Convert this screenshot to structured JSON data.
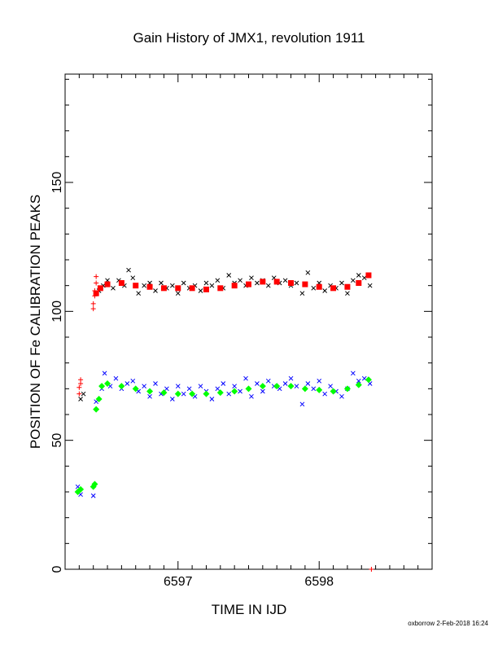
{
  "chart_data": {
    "type": "scatter",
    "title": "Gain History of JMX1, revolution 1911",
    "xlabel": "TIME IN IJD",
    "ylabel": "POSITION OF Fe CALIBRATION PEAKS",
    "xlim": [
      6596.2,
      6598.8
    ],
    "ylim": [
      0,
      192
    ],
    "x_ticks": [
      6597,
      6598
    ],
    "y_ticks": [
      0,
      50,
      100,
      150
    ],
    "grid": false,
    "footer": "oxborrow  2-Feb-2018 16:24",
    "series": [
      {
        "marker": "plus",
        "color": "#ff0000",
        "points": [
          [
            6596.3,
            68
          ],
          [
            6596.3,
            70.5
          ],
          [
            6596.31,
            72
          ],
          [
            6596.31,
            73.5
          ],
          [
            6596.4,
            101
          ],
          [
            6596.4,
            103
          ],
          [
            6596.41,
            106
          ],
          [
            6596.41,
            108
          ],
          [
            6596.42,
            111
          ],
          [
            6596.42,
            113.5
          ],
          [
            6598.37,
            0
          ]
        ]
      },
      {
        "marker": "cross",
        "color": "#000000",
        "points": [
          [
            6596.31,
            66
          ],
          [
            6596.33,
            68
          ],
          [
            6596.44,
            108
          ],
          [
            6596.47,
            110
          ],
          [
            6596.5,
            112
          ],
          [
            6596.54,
            109
          ],
          [
            6596.58,
            112
          ],
          [
            6596.62,
            110
          ],
          [
            6596.65,
            116
          ],
          [
            6596.68,
            113
          ],
          [
            6596.72,
            107
          ],
          [
            6596.76,
            110
          ],
          [
            6596.8,
            111
          ],
          [
            6596.84,
            108
          ],
          [
            6596.88,
            111
          ],
          [
            6596.92,
            109
          ],
          [
            6596.96,
            110
          ],
          [
            6597.0,
            107
          ],
          [
            6597.04,
            111
          ],
          [
            6597.08,
            109
          ],
          [
            6597.12,
            110
          ],
          [
            6597.16,
            108
          ],
          [
            6597.2,
            111
          ],
          [
            6597.24,
            110
          ],
          [
            6597.28,
            112
          ],
          [
            6597.32,
            109
          ],
          [
            6597.36,
            114
          ],
          [
            6597.4,
            111
          ],
          [
            6597.44,
            112
          ],
          [
            6597.48,
            110
          ],
          [
            6597.52,
            113
          ],
          [
            6597.56,
            111
          ],
          [
            6597.6,
            112
          ],
          [
            6597.64,
            110
          ],
          [
            6597.68,
            113
          ],
          [
            6597.72,
            111
          ],
          [
            6597.76,
            112
          ],
          [
            6597.8,
            110
          ],
          [
            6597.84,
            111
          ],
          [
            6597.88,
            107
          ],
          [
            6597.92,
            115
          ],
          [
            6597.96,
            109
          ],
          [
            6598.0,
            111
          ],
          [
            6598.04,
            108
          ],
          [
            6598.08,
            110
          ],
          [
            6598.12,
            109
          ],
          [
            6598.16,
            111
          ],
          [
            6598.2,
            107
          ],
          [
            6598.24,
            112
          ],
          [
            6598.28,
            114
          ],
          [
            6598.32,
            113
          ],
          [
            6598.36,
            110
          ]
        ]
      },
      {
        "marker": "square",
        "color": "#ff0000",
        "points": [
          [
            6596.42,
            107
          ],
          [
            6596.45,
            109
          ],
          [
            6596.5,
            110.5
          ],
          [
            6596.6,
            111
          ],
          [
            6596.7,
            110
          ],
          [
            6596.8,
            109.5
          ],
          [
            6596.9,
            109
          ],
          [
            6597.0,
            109
          ],
          [
            6597.1,
            109
          ],
          [
            6597.2,
            108.5
          ],
          [
            6597.3,
            109
          ],
          [
            6597.4,
            110
          ],
          [
            6597.5,
            110.5
          ],
          [
            6597.6,
            111.5
          ],
          [
            6597.7,
            111.5
          ],
          [
            6597.8,
            111
          ],
          [
            6597.9,
            110.5
          ],
          [
            6598.0,
            109.5
          ],
          [
            6598.1,
            109
          ],
          [
            6598.2,
            109.5
          ],
          [
            6598.28,
            111
          ],
          [
            6598.35,
            114
          ]
        ]
      },
      {
        "marker": "cross",
        "color": "#0000ff",
        "points": [
          [
            6596.29,
            32
          ],
          [
            6596.31,
            29
          ],
          [
            6596.4,
            28.5
          ],
          [
            6596.42,
            65
          ],
          [
            6596.46,
            70
          ],
          [
            6596.48,
            76
          ],
          [
            6596.52,
            71
          ],
          [
            6596.56,
            74
          ],
          [
            6596.6,
            70
          ],
          [
            6596.64,
            72
          ],
          [
            6596.68,
            73
          ],
          [
            6596.72,
            69
          ],
          [
            6596.76,
            71
          ],
          [
            6596.8,
            67
          ],
          [
            6596.84,
            72
          ],
          [
            6596.88,
            68
          ],
          [
            6596.92,
            70
          ],
          [
            6596.96,
            66
          ],
          [
            6597.0,
            71
          ],
          [
            6597.04,
            68
          ],
          [
            6597.08,
            70
          ],
          [
            6597.12,
            67
          ],
          [
            6597.16,
            71
          ],
          [
            6597.2,
            69
          ],
          [
            6597.24,
            66
          ],
          [
            6597.28,
            70
          ],
          [
            6597.32,
            72
          ],
          [
            6597.36,
            68
          ],
          [
            6597.4,
            71
          ],
          [
            6597.44,
            69
          ],
          [
            6597.48,
            74
          ],
          [
            6597.52,
            67
          ],
          [
            6597.56,
            72
          ],
          [
            6597.6,
            69
          ],
          [
            6597.64,
            73
          ],
          [
            6597.68,
            71
          ],
          [
            6597.72,
            70
          ],
          [
            6597.76,
            72
          ],
          [
            6597.8,
            74
          ],
          [
            6597.84,
            71
          ],
          [
            6597.88,
            64
          ],
          [
            6597.92,
            72
          ],
          [
            6597.96,
            70
          ],
          [
            6598.0,
            73
          ],
          [
            6598.04,
            68
          ],
          [
            6598.08,
            71
          ],
          [
            6598.12,
            69
          ],
          [
            6598.16,
            67
          ],
          [
            6598.2,
            70
          ],
          [
            6598.24,
            76
          ],
          [
            6598.28,
            73
          ],
          [
            6598.32,
            74
          ],
          [
            6598.36,
            72
          ]
        ]
      },
      {
        "marker": "diamond",
        "color": "#00ff00",
        "points": [
          [
            6596.29,
            30
          ],
          [
            6596.31,
            31
          ],
          [
            6596.4,
            32
          ],
          [
            6596.41,
            33
          ],
          [
            6596.42,
            62
          ],
          [
            6596.44,
            66
          ],
          [
            6596.46,
            71
          ],
          [
            6596.5,
            72
          ],
          [
            6596.6,
            71
          ],
          [
            6596.7,
            70
          ],
          [
            6596.8,
            69
          ],
          [
            6596.9,
            68.5
          ],
          [
            6597.0,
            68
          ],
          [
            6597.1,
            68
          ],
          [
            6597.2,
            68
          ],
          [
            6597.3,
            68.5
          ],
          [
            6597.4,
            69
          ],
          [
            6597.5,
            70
          ],
          [
            6597.6,
            71
          ],
          [
            6597.7,
            71
          ],
          [
            6597.8,
            71
          ],
          [
            6597.9,
            70
          ],
          [
            6598.0,
            69.5
          ],
          [
            6598.1,
            69
          ],
          [
            6598.2,
            70
          ],
          [
            6598.28,
            71.5
          ],
          [
            6598.35,
            73.5
          ]
        ]
      }
    ]
  }
}
